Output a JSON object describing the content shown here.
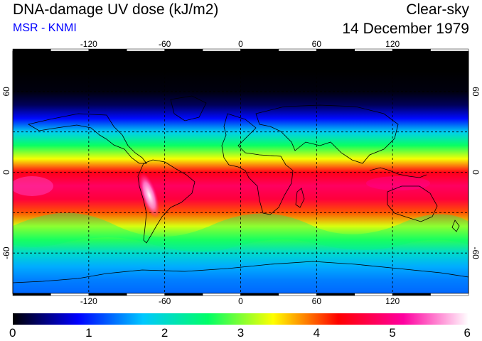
{
  "header": {
    "title": "DNA-damage UV dose (kJ/m2)",
    "subtitle": "MSR - KNMI",
    "condition": "Clear-sky",
    "date": "14 December 1979"
  },
  "map": {
    "projection": "equirectangular",
    "lon_range": [
      -180,
      180
    ],
    "lat_range": [
      -90,
      90
    ],
    "lon_ticks": [
      -120,
      -60,
      0,
      60,
      120
    ],
    "lat_ticks": [
      60,
      0,
      -60
    ],
    "lon_tick_labels": [
      "-120",
      "-60",
      "0",
      "60",
      "120"
    ],
    "lat_tick_labels": [
      "60",
      "0",
      "-60"
    ],
    "gridlines": "dashed",
    "coastlines": true
  },
  "colorbar": {
    "ticks": [
      "0",
      "1",
      "2",
      "3",
      "4",
      "5",
      "6"
    ],
    "colors": [
      "#000000",
      "#0000ff",
      "#00c8ff",
      "#00ff66",
      "#ffff00",
      "#ff0000",
      "#ff00a0",
      "#ffffff"
    ]
  },
  "chart_data": {
    "type": "heatmap",
    "title": "DNA-damage UV dose (kJ/m2)",
    "value_range": [
      0,
      6
    ],
    "latitude_profile": {
      "lat": [
        90,
        75,
        60,
        50,
        40,
        30,
        20,
        10,
        0,
        -10,
        -20,
        -30,
        -40,
        -50,
        -60,
        -70,
        -80,
        -90
      ],
      "value": [
        0,
        0,
        0.05,
        0.3,
        0.9,
        1.8,
        2.6,
        3.4,
        4.4,
        4.8,
        4.6,
        4.0,
        3.3,
        2.7,
        2.0,
        1.6,
        1.4,
        1.3
      ]
    },
    "max_region": "Andes / Altiplano, ~6 kJ/m2"
  }
}
